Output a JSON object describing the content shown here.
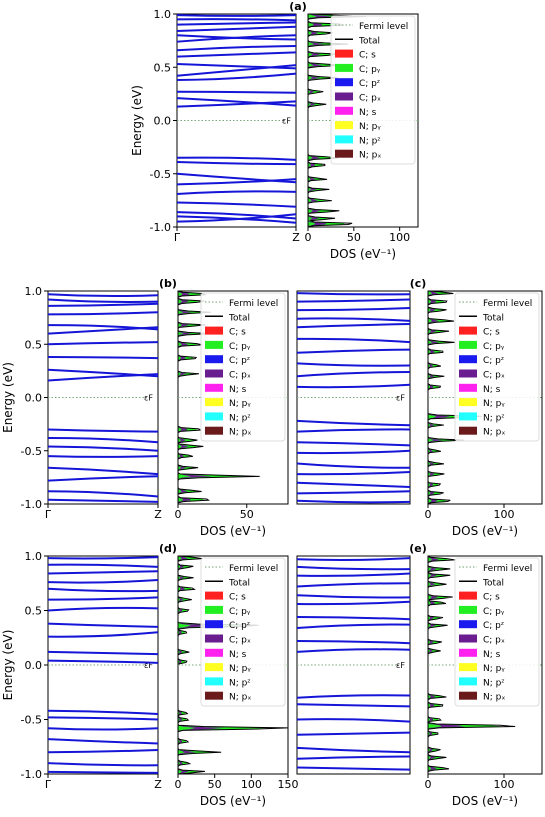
{
  "figure": {
    "panel_labels": [
      "(a)",
      "(b)",
      "(c)",
      "(d)",
      "(e)"
    ]
  },
  "chart_data": [
    {
      "type": "line",
      "subtype": "band-structure",
      "panel": "(a)",
      "ylabel": "Energy (eV)",
      "ylim": [
        -1.0,
        1.0
      ],
      "yticks": [
        "1.0",
        "0.5",
        "0.0",
        "-0.5",
        "-1.0"
      ],
      "xticks": [
        "Γ",
        "Z"
      ],
      "fermi_label": "εF",
      "band_color": "#1515d8",
      "bands": [
        [
          0.99,
          0.99
        ],
        [
          0.95,
          0.94
        ],
        [
          0.9,
          0.92
        ],
        [
          0.84,
          0.88
        ],
        [
          0.8,
          0.76
        ],
        [
          0.74,
          0.8
        ],
        [
          0.66,
          0.7
        ],
        [
          0.6,
          0.64
        ],
        [
          0.53,
          0.49
        ],
        [
          0.42,
          0.52
        ],
        [
          0.38,
          0.44
        ],
        [
          0.27,
          0.26
        ],
        [
          0.21,
          0.14
        ],
        [
          0.13,
          0.18
        ],
        [
          -0.35,
          -0.37
        ],
        [
          -0.39,
          -0.41
        ],
        [
          -0.5,
          -0.58
        ],
        [
          -0.6,
          -0.55
        ],
        [
          -0.69,
          -0.67
        ],
        [
          -0.77,
          -0.81
        ],
        [
          -0.86,
          -0.92
        ],
        [
          -0.9,
          -0.96
        ],
        [
          -0.95,
          -0.88
        ]
      ]
    },
    {
      "type": "area",
      "subtype": "density-of-states",
      "panel": "(a)",
      "xlabel": "DOS (eV⁻¹)",
      "xlim": [
        0,
        120
      ],
      "xticks": [
        0,
        50,
        100
      ],
      "ylim": [
        -1.0,
        1.0
      ],
      "legend_position": "upper-right",
      "legend": [
        {
          "name": "Fermi level",
          "kind": "dotted",
          "color": "#9fbf9f"
        },
        {
          "name": "Total",
          "kind": "line",
          "color": "#000000"
        },
        {
          "name": "C; s",
          "kind": "patch",
          "color": "#ff2020"
        },
        {
          "name": "C; pᵧ",
          "kind": "patch",
          "color": "#22ee22"
        },
        {
          "name": "C; pᶻ",
          "kind": "patch",
          "color": "#1a1aee"
        },
        {
          "name": "C; pₓ",
          "kind": "patch",
          "color": "#6a1d8f"
        },
        {
          "name": "N; s",
          "kind": "patch",
          "color": "#ff22ee"
        },
        {
          "name": "N; pᵧ",
          "kind": "patch",
          "color": "#ffff22"
        },
        {
          "name": "N; pᶻ",
          "kind": "patch",
          "color": "#22ffff"
        },
        {
          "name": "N; pₓ",
          "kind": "patch",
          "color": "#6a1a1a"
        }
      ],
      "total_peaks": [
        [
          0.98,
          60
        ],
        [
          0.9,
          40
        ],
        [
          0.82,
          30
        ],
        [
          0.72,
          45
        ],
        [
          0.62,
          38
        ],
        [
          0.52,
          42
        ],
        [
          0.4,
          30
        ],
        [
          0.27,
          20
        ],
        [
          0.15,
          22
        ],
        [
          -0.35,
          30
        ],
        [
          -0.42,
          28
        ],
        [
          -0.55,
          20
        ],
        [
          -0.65,
          22
        ],
        [
          -0.75,
          30
        ],
        [
          -0.85,
          35
        ],
        [
          -0.92,
          40
        ],
        [
          -0.97,
          55
        ]
      ]
    },
    {
      "type": "line",
      "subtype": "band-structure",
      "panel": "(b)",
      "ylabel": "Energy (eV)",
      "ylim": [
        -1.0,
        1.0
      ],
      "yticks": [
        "1.0",
        "0.5",
        "0.0",
        "-0.5",
        "-1.0"
      ],
      "xticks": [
        "Γ",
        "Z"
      ],
      "fermi_label": "εF",
      "band_color": "#1515d8",
      "bands": [
        [
          0.97,
          0.96
        ],
        [
          0.92,
          0.9
        ],
        [
          0.86,
          0.88
        ],
        [
          0.78,
          0.8
        ],
        [
          0.68,
          0.64
        ],
        [
          0.6,
          0.66
        ],
        [
          0.5,
          0.52
        ],
        [
          0.38,
          0.37
        ],
        [
          0.26,
          0.2
        ],
        [
          0.16,
          0.22
        ],
        [
          -0.3,
          -0.32
        ],
        [
          -0.38,
          -0.42
        ],
        [
          -0.46,
          -0.5
        ],
        [
          -0.55,
          -0.55
        ],
        [
          -0.66,
          -0.72
        ],
        [
          -0.78,
          -0.74
        ],
        [
          -0.88,
          -0.93
        ],
        [
          -0.96,
          -0.98
        ]
      ]
    },
    {
      "type": "area",
      "subtype": "density-of-states",
      "panel": "(b)",
      "xlabel": "DOS (eV⁻¹)",
      "xlim": [
        0,
        80
      ],
      "xticks": [
        0,
        50
      ],
      "ylim": [
        -1.0,
        1.0
      ],
      "legend_position": "upper-right",
      "total_peaks": [
        [
          0.97,
          30
        ],
        [
          0.9,
          25
        ],
        [
          0.8,
          20
        ],
        [
          0.68,
          18
        ],
        [
          0.6,
          22
        ],
        [
          0.5,
          20
        ],
        [
          0.37,
          16
        ],
        [
          0.22,
          15
        ],
        [
          -0.3,
          18
        ],
        [
          -0.4,
          20
        ],
        [
          -0.46,
          25
        ],
        [
          -0.55,
          12
        ],
        [
          -0.66,
          15
        ],
        [
          -0.74,
          60
        ],
        [
          -0.88,
          20
        ],
        [
          -0.96,
          25
        ]
      ]
    },
    {
      "type": "line",
      "subtype": "band-structure",
      "panel": "(c)",
      "ylim": [
        -1.0,
        1.0
      ],
      "fermi_label": "εF",
      "band_color": "#1515d8",
      "bands": [
        [
          0.98,
          0.97
        ],
        [
          0.9,
          0.92
        ],
        [
          0.82,
          0.84
        ],
        [
          0.74,
          0.72
        ],
        [
          0.66,
          0.69
        ],
        [
          0.55,
          0.52
        ],
        [
          0.42,
          0.45
        ],
        [
          0.32,
          0.3
        ],
        [
          0.2,
          0.24
        ],
        [
          0.1,
          0.12
        ],
        [
          -0.22,
          -0.26
        ],
        [
          -0.32,
          -0.3
        ],
        [
          -0.42,
          -0.45
        ],
        [
          -0.52,
          -0.5
        ],
        [
          -0.62,
          -0.66
        ],
        [
          -0.72,
          -0.7
        ],
        [
          -0.8,
          -0.84
        ],
        [
          -0.9,
          -0.88
        ],
        [
          -0.97,
          -0.98
        ]
      ]
    },
    {
      "type": "area",
      "subtype": "density-of-states",
      "panel": "(c)",
      "xlabel": "DOS (eV⁻¹)",
      "xlim": [
        0,
        150
      ],
      "xticks": [
        0,
        100
      ],
      "ylim": [
        -1.0,
        1.0
      ],
      "legend_position": "upper-right",
      "total_peaks": [
        [
          0.98,
          40
        ],
        [
          0.9,
          35
        ],
        [
          0.82,
          30
        ],
        [
          0.72,
          38
        ],
        [
          0.62,
          28
        ],
        [
          0.52,
          34
        ],
        [
          0.43,
          25
        ],
        [
          0.3,
          20
        ],
        [
          0.2,
          18
        ],
        [
          0.1,
          22
        ],
        [
          -0.18,
          70
        ],
        [
          -0.26,
          20
        ],
        [
          -0.4,
          45
        ],
        [
          -0.5,
          18
        ],
        [
          -0.62,
          20
        ],
        [
          -0.72,
          24
        ],
        [
          -0.82,
          22
        ],
        [
          -0.9,
          28
        ],
        [
          -0.97,
          30
        ]
      ]
    },
    {
      "type": "line",
      "subtype": "band-structure",
      "panel": "(d)",
      "ylabel": "Energy (eV)",
      "ylim": [
        -1.0,
        1.0
      ],
      "yticks": [
        "1.0",
        "0.5",
        "0.0",
        "-0.5",
        "-1.0"
      ],
      "xticks": [
        "Γ",
        "Z"
      ],
      "fermi_label": "εF",
      "band_color": "#1515d8",
      "bands": [
        [
          0.98,
          0.99
        ],
        [
          0.92,
          0.9
        ],
        [
          0.84,
          0.86
        ],
        [
          0.76,
          0.78
        ],
        [
          0.7,
          0.68
        ],
        [
          0.6,
          0.62
        ],
        [
          0.5,
          0.52
        ],
        [
          0.38,
          0.35
        ],
        [
          0.26,
          0.3
        ],
        [
          0.12,
          0.1
        ],
        [
          0.04,
          0.02
        ],
        [
          -0.42,
          -0.45
        ],
        [
          -0.48,
          -0.5
        ],
        [
          -0.58,
          -0.58
        ],
        [
          -0.68,
          -0.72
        ],
        [
          -0.8,
          -0.78
        ],
        [
          -0.9,
          -0.92
        ],
        [
          -0.98,
          -0.99
        ]
      ]
    },
    {
      "type": "area",
      "subtype": "density-of-states",
      "panel": "(d)",
      "xlabel": "DOS (eV⁻¹)",
      "xlim": [
        0,
        150
      ],
      "xticks": [
        0,
        50,
        100,
        150
      ],
      "ylim": [
        -1.0,
        1.0
      ],
      "legend_position": "upper-right",
      "total_peaks": [
        [
          0.98,
          30
        ],
        [
          0.9,
          25
        ],
        [
          0.8,
          20
        ],
        [
          0.7,
          24
        ],
        [
          0.6,
          22
        ],
        [
          0.5,
          20
        ],
        [
          0.36,
          150
        ],
        [
          0.3,
          18
        ],
        [
          0.12,
          15
        ],
        [
          0.03,
          20
        ],
        [
          -0.44,
          18
        ],
        [
          -0.5,
          20
        ],
        [
          -0.58,
          150
        ],
        [
          -0.7,
          18
        ],
        [
          -0.8,
          60
        ],
        [
          -0.9,
          20
        ],
        [
          -0.98,
          35
        ]
      ]
    },
    {
      "type": "line",
      "subtype": "band-structure",
      "panel": "(e)",
      "ylim": [
        -1.0,
        1.0
      ],
      "fermi_label": "εF",
      "band_color": "#1515d8",
      "bands": [
        [
          0.97,
          0.98
        ],
        [
          0.9,
          0.88
        ],
        [
          0.82,
          0.84
        ],
        [
          0.72,
          0.75
        ],
        [
          0.64,
          0.62
        ],
        [
          0.56,
          0.58
        ],
        [
          0.44,
          0.42
        ],
        [
          0.34,
          0.37
        ],
        [
          0.22,
          0.2
        ],
        [
          0.12,
          0.14
        ],
        [
          -0.3,
          -0.28
        ],
        [
          -0.36,
          -0.38
        ],
        [
          -0.5,
          -0.52
        ],
        [
          -0.64,
          -0.62
        ],
        [
          -0.76,
          -0.8
        ],
        [
          -0.86,
          -0.84
        ],
        [
          -0.94,
          -0.96
        ]
      ]
    },
    {
      "type": "area",
      "subtype": "density-of-states",
      "panel": "(e)",
      "xlabel": "DOS (eV⁻¹)",
      "xlim": [
        0,
        150
      ],
      "xticks": [
        0,
        100
      ],
      "ylim": [
        -1.0,
        1.0
      ],
      "legend_position": "upper-right",
      "total_peaks": [
        [
          0.97,
          40
        ],
        [
          0.88,
          32
        ],
        [
          0.82,
          28
        ],
        [
          0.74,
          35
        ],
        [
          0.62,
          30
        ],
        [
          0.57,
          25
        ],
        [
          0.43,
          22
        ],
        [
          0.36,
          28
        ],
        [
          0.21,
          20
        ],
        [
          0.13,
          18
        ],
        [
          -0.29,
          24
        ],
        [
          -0.37,
          22
        ],
        [
          -0.5,
          20
        ],
        [
          -0.56,
          130
        ],
        [
          -0.63,
          22
        ],
        [
          -0.78,
          24
        ],
        [
          -0.85,
          26
        ],
        [
          -0.95,
          30
        ]
      ]
    }
  ]
}
